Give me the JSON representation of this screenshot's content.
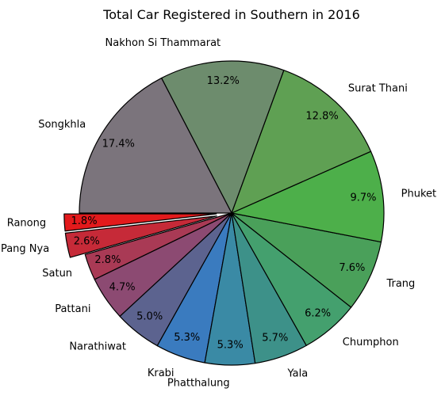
{
  "chart_data": {
    "type": "pie",
    "title": "Total Car Registered in Southern in 2016",
    "categories": [
      "Ranong",
      "Pang Nya",
      "Satun",
      "Pattani",
      "Narathiwat",
      "Krabi",
      "Phatthalung",
      "Yala",
      "Chumphon",
      "Trang",
      "Phuket",
      "Surat Thani",
      "Nakhon Si Thammarat",
      "Songkhla"
    ],
    "values": [
      1.8,
      2.6,
      2.8,
      4.7,
      5.0,
      5.3,
      5.3,
      5.7,
      6.2,
      7.6,
      9.7,
      12.8,
      13.2,
      17.4
    ],
    "labels": [
      "1.8%",
      "2.6%",
      "2.8%",
      "4.7%",
      "5.0%",
      "5.3%",
      "5.3%",
      "5.7%",
      "6.2%",
      "7.6%",
      "9.7%",
      "12.8%",
      "13.2%",
      "17.4%"
    ],
    "colors": [
      "#e31a1c",
      "#c62a38",
      "#a93a55",
      "#8c4a72",
      "#5c638f",
      "#3a7bbf",
      "#3a8aa5",
      "#3d9189",
      "#44a06e",
      "#4aa05a",
      "#4daf4a",
      "#5fa053",
      "#6d8c6d",
      "#7b747c"
    ],
    "explode": [
      0.1,
      0.1,
      0,
      0,
      0,
      0,
      0,
      0,
      0,
      0,
      0,
      0,
      0,
      0
    ],
    "start_angle": 180,
    "direction": "counterclockwise",
    "legend": "none"
  }
}
